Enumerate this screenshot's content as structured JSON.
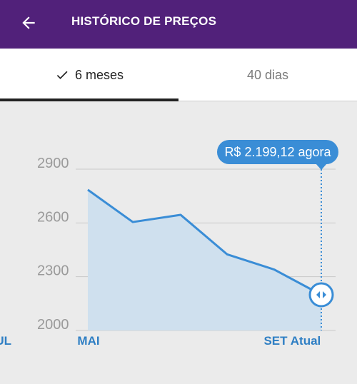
{
  "header": {
    "title": "HISTÓRICO DE PREÇOS",
    "back_icon": "arrow-left-icon",
    "background": "#51217a"
  },
  "tabs": [
    {
      "label": "6 meses",
      "active": true,
      "icon": "check-icon"
    },
    {
      "label": "40 dias",
      "active": false
    }
  ],
  "chart_data": {
    "type": "area",
    "categories": [
      "MAI",
      "",
      "JUL",
      "",
      "SET",
      "Atual"
    ],
    "values": [
      2785,
      2605,
      2645,
      2425,
      2340,
      2199.12
    ],
    "ylim": [
      2000,
      2900
    ],
    "yticks": [
      "2900",
      "2600",
      "2300",
      "2000"
    ],
    "grid": true,
    "tooltip": "R$ 2.199,12 agora",
    "line_color": "#3a8dd6",
    "fill_color": "#cfe0ee"
  }
}
